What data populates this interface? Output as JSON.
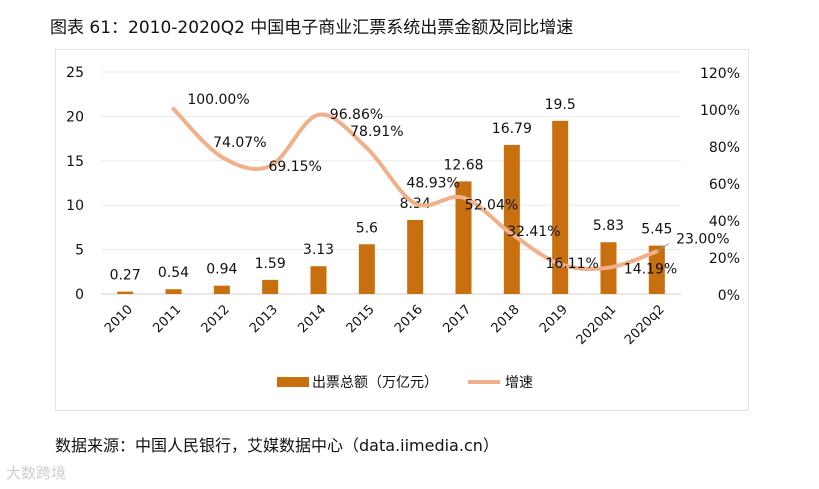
{
  "title": "图表 61：2010-2020Q2 中国电子商业汇票系统出票金额及同比增速",
  "source": "数据来源：中国人民银行，艾媒数据中心（data.iimedia.cn）",
  "watermark": "大数跨境",
  "chart_data": {
    "type": "bar+line",
    "categories": [
      "2010",
      "2011",
      "2012",
      "2013",
      "2014",
      "2015",
      "2016",
      "2017",
      "2018",
      "2019",
      "2020q1",
      "2020q2"
    ],
    "series": [
      {
        "name": "出票总额（万亿元）",
        "type": "bar",
        "axis": "left",
        "color": "#c8700f",
        "values": [
          0.27,
          0.54,
          0.94,
          1.59,
          3.13,
          5.6,
          8.34,
          12.68,
          16.79,
          19.5,
          5.83,
          5.45
        ],
        "labels": [
          "0.27",
          "0.54",
          "0.94",
          "1.59",
          "3.13",
          "5.6",
          "8.34",
          "12.68",
          "16.79",
          "19.5",
          "5.83",
          "5.45"
        ]
      },
      {
        "name": "增速",
        "type": "line",
        "axis": "right",
        "color": "#f0b08a",
        "values": [
          null,
          100.0,
          74.07,
          69.15,
          96.86,
          78.91,
          48.93,
          52.04,
          32.41,
          16.11,
          14.19,
          23.0
        ],
        "labels": [
          null,
          "100.00%",
          "74.07%",
          "69.15%",
          "96.86%",
          "78.91%",
          "48.93%",
          "52.04%",
          "32.41%",
          "16.11%",
          "14.19%",
          "23.00%"
        ]
      }
    ],
    "y_left": {
      "range": [
        0,
        25
      ],
      "ticks": [
        "0",
        "5",
        "10",
        "15",
        "20",
        "25"
      ]
    },
    "y_right": {
      "range": [
        0,
        120
      ],
      "ticks": [
        "0%",
        "20%",
        "40%",
        "60%",
        "80%",
        "100%",
        "120%"
      ]
    },
    "legend_position": "bottom",
    "grid": true
  }
}
